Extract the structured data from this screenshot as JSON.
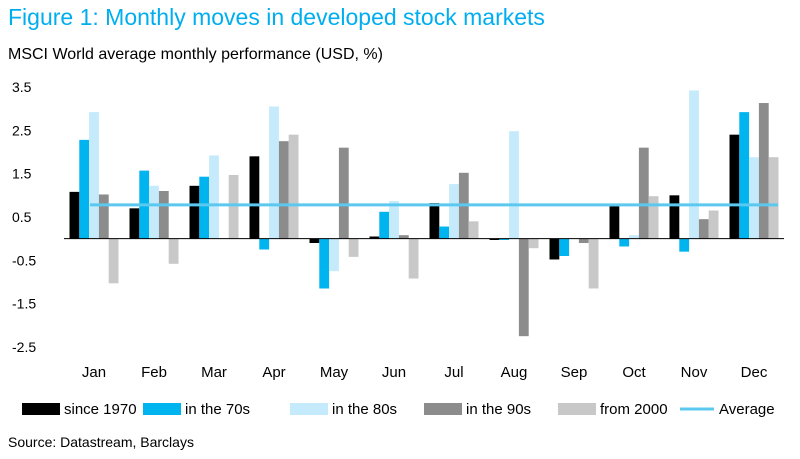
{
  "figure_title": "Figure 1: Monthly moves in developed stock markets",
  "source": "Source: Datastream, Barclays",
  "chart_data": {
    "type": "bar",
    "title": "MSCI World average monthly performance (USD, %)",
    "categories": [
      "Jan",
      "Feb",
      "Mar",
      "Apr",
      "May",
      "Jun",
      "Jul",
      "Aug",
      "Sep",
      "Oct",
      "Nov",
      "Dec"
    ],
    "ylim": [
      -2.5,
      3.5
    ],
    "yticks": [
      "3.5",
      "2.5",
      "1.5",
      "0.5",
      "-0.5",
      "-1.5",
      "-2.5"
    ],
    "grid": false,
    "legend_position": "bottom",
    "series": [
      {
        "name": "since 1970",
        "color": "#000000",
        "values": [
          1.08,
          0.7,
          1.22,
          1.9,
          -0.1,
          0.05,
          0.82,
          -0.03,
          -0.48,
          0.75,
          1.0,
          2.4
        ]
      },
      {
        "name": "in the 70s",
        "color": "#00b4ef",
        "values": [
          2.28,
          1.57,
          1.43,
          -0.25,
          -1.15,
          0.62,
          0.28,
          -0.03,
          -0.4,
          -0.18,
          -0.3,
          2.92
        ]
      },
      {
        "name": "in the 80s",
        "color": "#c5eafb",
        "values": [
          2.92,
          1.22,
          1.92,
          3.05,
          -0.75,
          0.87,
          1.26,
          2.48,
          0.0,
          0.08,
          3.42,
          1.88
        ]
      },
      {
        "name": "in the 90s",
        "color": "#8c8c8c",
        "values": [
          1.02,
          1.1,
          0.0,
          2.25,
          2.1,
          0.08,
          1.52,
          -2.25,
          -0.1,
          2.1,
          0.45,
          3.13
        ]
      },
      {
        "name": "from 2000",
        "color": "#c8c8c8",
        "values": [
          -1.03,
          -0.58,
          1.47,
          2.4,
          -0.42,
          -0.92,
          0.4,
          -0.22,
          -1.15,
          0.98,
          0.65,
          1.88
        ]
      }
    ],
    "average": {
      "name": "Average",
      "color": "#5bc8ef",
      "value": 0.78
    }
  }
}
